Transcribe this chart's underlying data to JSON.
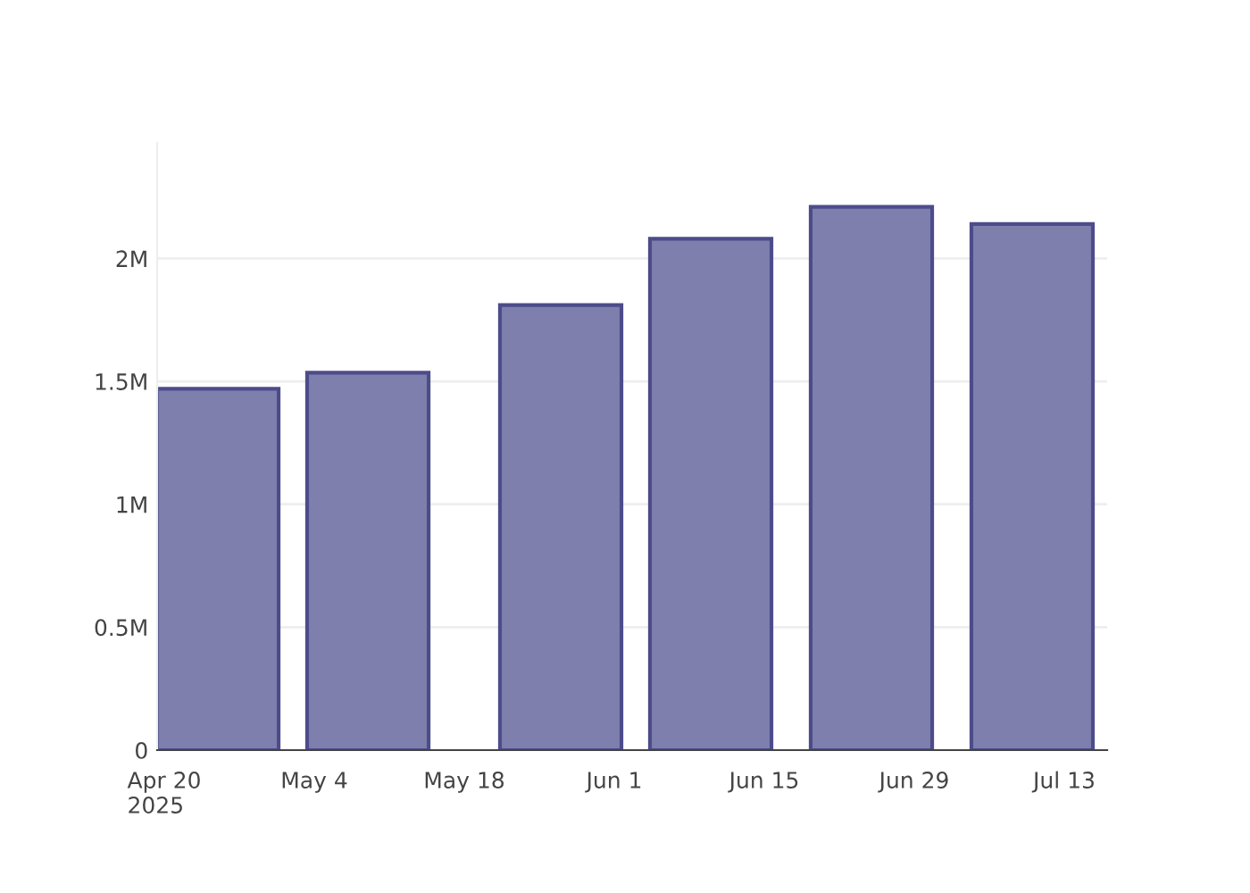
{
  "chart_data": {
    "type": "bar",
    "x": [
      "2025-04-25",
      "2025-05-09",
      "2025-05-27",
      "2025-06-10",
      "2025-06-25",
      "2025-07-10"
    ],
    "values": [
      1470000,
      1535000,
      1810000,
      2080000,
      2210000,
      2140000
    ],
    "color": "#7f7fae",
    "xlim": [
      "2025-04-19T08:00",
      "2025-07-17"
    ],
    "xticks": [
      {
        "value": "2025-04-20",
        "label": "Apr 20\n2025"
      },
      {
        "value": "2025-05-04",
        "label": "May 4"
      },
      {
        "value": "2025-05-18",
        "label": "May 18"
      },
      {
        "value": "2025-06-01",
        "label": "Jun 1"
      },
      {
        "value": "2025-06-15",
        "label": "Jun 15"
      },
      {
        "value": "2025-06-29",
        "label": "Jun 29"
      },
      {
        "value": "2025-07-13",
        "label": "Jul 13"
      }
    ],
    "ylim": [
      0,
      2470000
    ],
    "yticks": [
      0,
      {
        "value": 500000,
        "label": "0.5M"
      },
      {
        "value": 1000000,
        "label": "1M"
      },
      {
        "value": 1500000,
        "label": "1.5M"
      },
      {
        "value": 2000000,
        "label": "2M"
      }
    ],
    "grid": "y"
  }
}
